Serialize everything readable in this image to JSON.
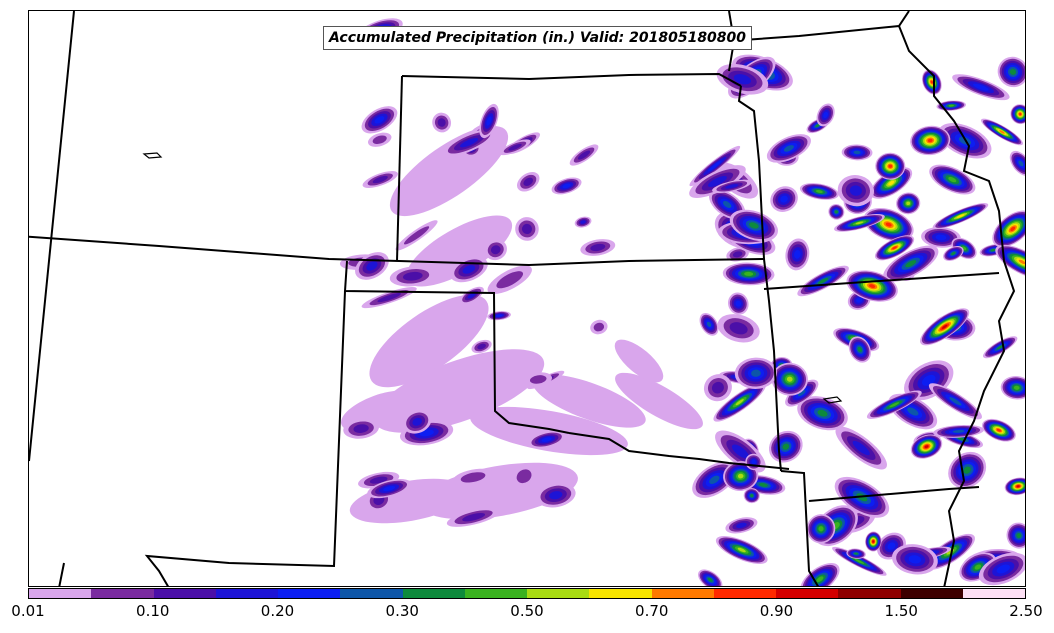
{
  "title": "Accumulated Precipitation (in.) Valid: 201805180800",
  "colorbar": {
    "colors": [
      "#d9a6ec",
      "#7a2ba0",
      "#4b0fa8",
      "#1d14d6",
      "#0c1ef2",
      "#0d56a8",
      "#0d8a3c",
      "#3ab21f",
      "#a8db12",
      "#f7e400",
      "#ff7a00",
      "#ff2a00",
      "#d40000",
      "#8f0000",
      "#3d0000",
      "#fde0f5"
    ],
    "tick_labels": [
      "0.01",
      "0.10",
      "0.20",
      "0.30",
      "0.50",
      "0.70",
      "0.90",
      "1.50",
      "2.50"
    ]
  }
}
